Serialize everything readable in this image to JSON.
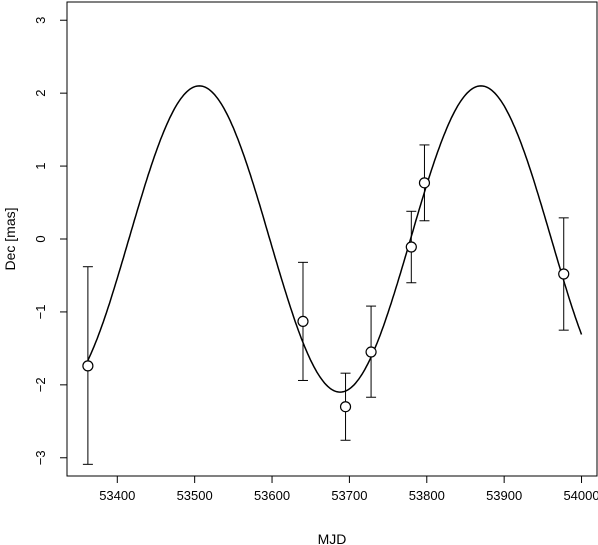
{
  "chart_data": {
    "type": "scatter",
    "title": "",
    "xlabel": "MJD",
    "ylabel": "Dec [mas]",
    "xlim": [
      53335,
      54020
    ],
    "ylim": [
      -3.25,
      3.25
    ],
    "xticks": [
      53400,
      53500,
      53600,
      53700,
      53800,
      53900,
      54000
    ],
    "yticks": [
      -3,
      -2,
      -1,
      0,
      1,
      2,
      3
    ],
    "grid": false,
    "legend": "none",
    "series": [
      {
        "type": "scatter-errorbar",
        "marker": "open-circle",
        "points": [
          {
            "x": 53362,
            "y": -1.74,
            "err_low": -3.09,
            "err_high": -0.38
          },
          {
            "x": 53640,
            "y": -1.13,
            "err_low": -1.94,
            "err_high": -0.32
          },
          {
            "x": 53695,
            "y": -2.3,
            "err_low": -2.76,
            "err_high": -1.84
          },
          {
            "x": 53728,
            "y": -1.55,
            "err_low": -2.17,
            "err_high": -0.92
          },
          {
            "x": 53780,
            "y": -0.11,
            "err_low": -0.6,
            "err_high": 0.38
          },
          {
            "x": 53797,
            "y": 0.77,
            "err_low": 0.25,
            "err_high": 1.29
          },
          {
            "x": 53977,
            "y": -0.48,
            "err_low": -1.25,
            "err_high": 0.29
          }
        ]
      },
      {
        "type": "line",
        "model": "sinusoid",
        "amplitude": 2.1,
        "period": 364,
        "peak_x": 53506,
        "offset": 0,
        "x_range": [
          53362,
          54000
        ]
      }
    ]
  }
}
